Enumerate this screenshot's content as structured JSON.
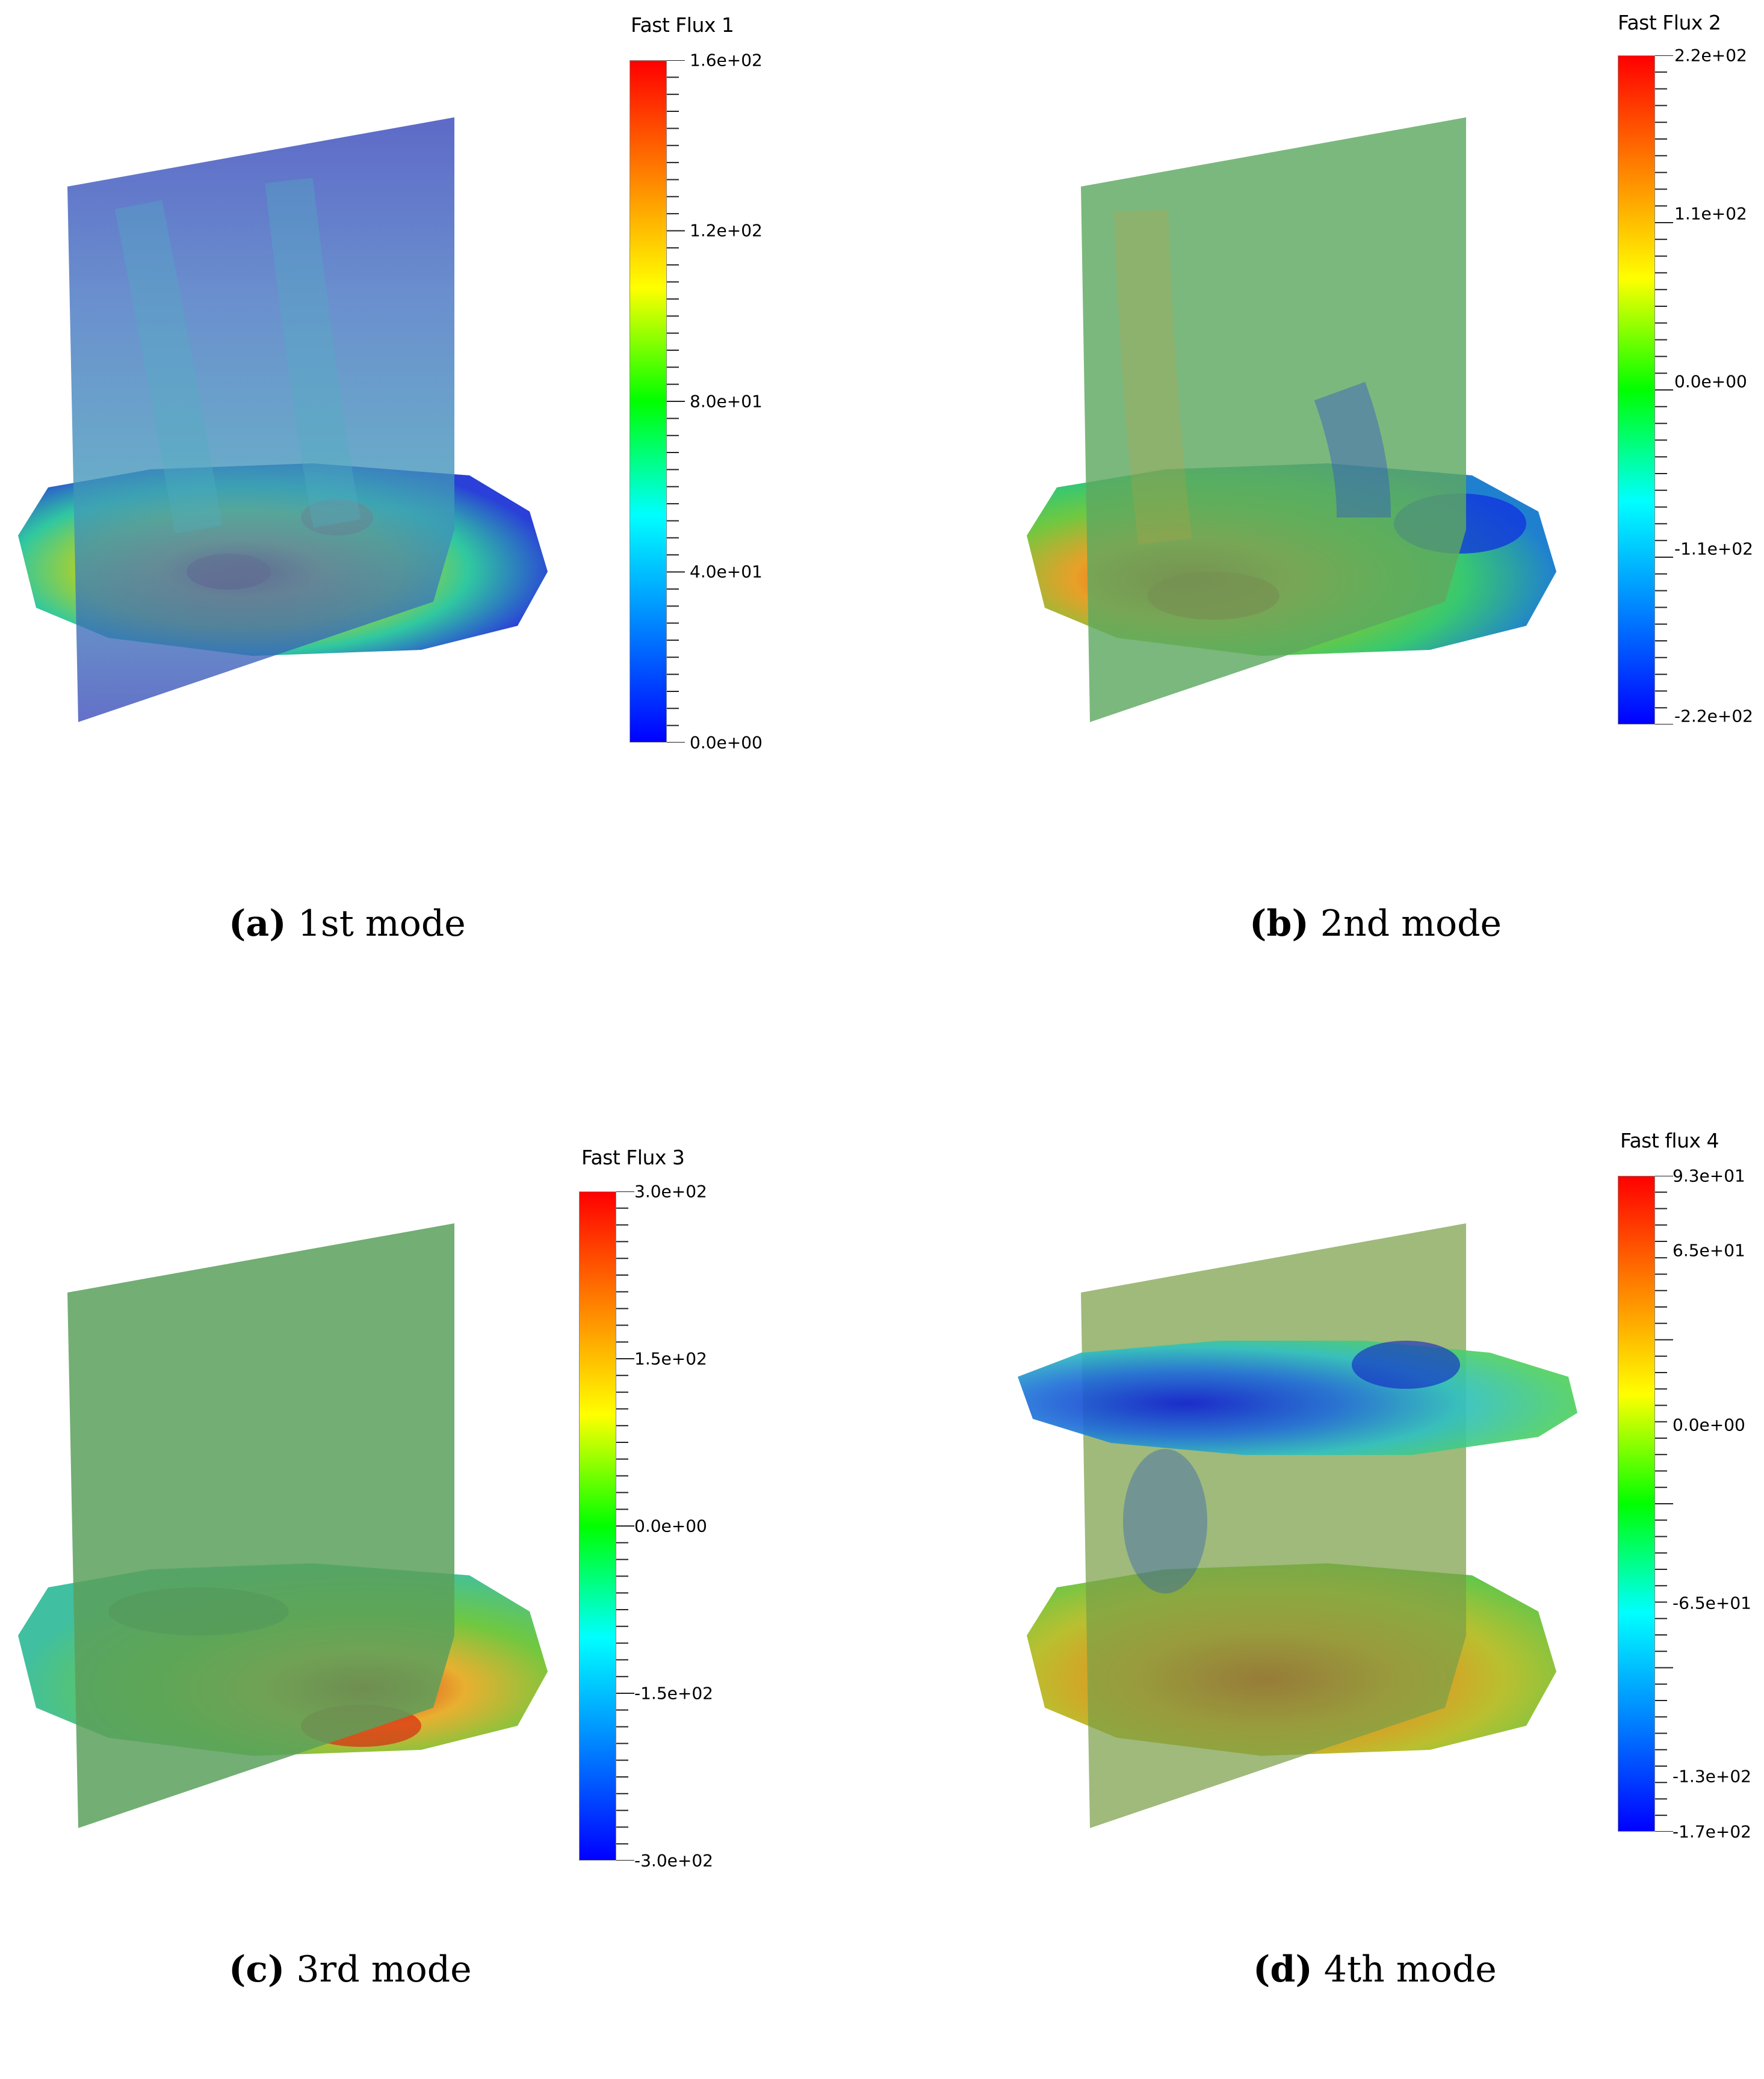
{
  "panels": [
    {
      "id": "a",
      "caption_letter": "(a)",
      "caption_text": " 1st mode",
      "colorbar": {
        "title": "Fast Flux 1",
        "labels": [
          "1.6e+02",
          "1.2e+02",
          "8.0e+01",
          "4.0e+01",
          "0.0e+00"
        ]
      }
    },
    {
      "id": "b",
      "caption_letter": "(b)",
      "caption_text": " 2nd mode",
      "colorbar": {
        "title": "Fast Flux 2",
        "labels": [
          "2.2e+02",
          "1.1e+02",
          "0.0e+00",
          "-1.1e+02",
          "-2.2e+02"
        ]
      }
    },
    {
      "id": "c",
      "caption_letter": "(c)",
      "caption_text": " 3rd mode",
      "colorbar": {
        "title": "Fast Flux 3",
        "labels": [
          "3.0e+02",
          "1.5e+02",
          "0.0e+00",
          "-1.5e+02",
          "-3.0e+02"
        ]
      }
    },
    {
      "id": "d",
      "caption_letter": "(d)",
      "caption_text": " 4th mode",
      "colorbar": {
        "title": "Fast flux 4",
        "labels": [
          "9.3e+01",
          "6.5e+01",
          "0.0e+00",
          "-6.5e+01",
          "-1.3e+02",
          "-1.7e+02"
        ]
      }
    }
  ],
  "colormap": [
    "#0000ff",
    "#0080ff",
    "#00ffff",
    "#00ff00",
    "#ffff00",
    "#ff8000",
    "#ff0000"
  ]
}
